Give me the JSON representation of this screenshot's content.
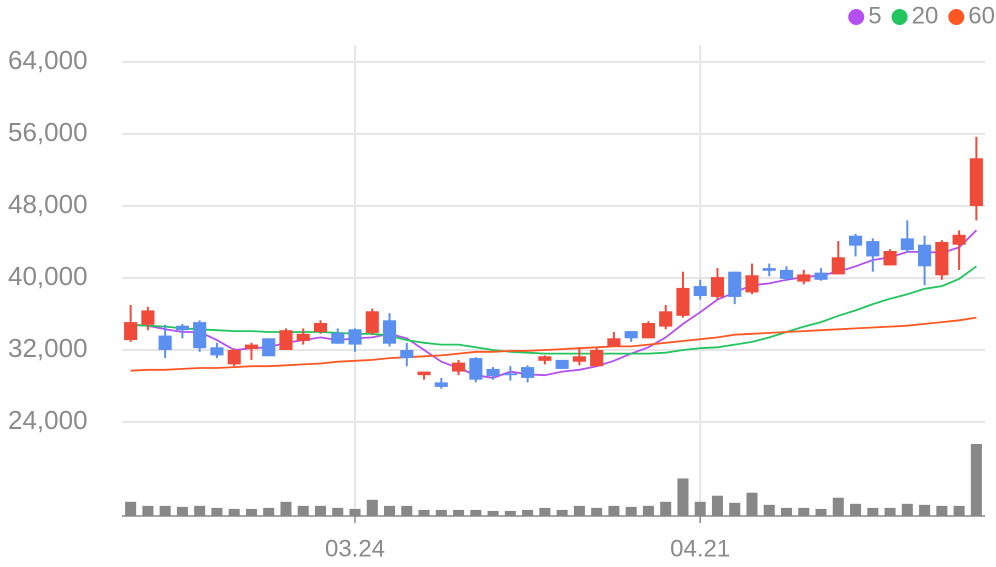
{
  "chart_data": {
    "type": "candlestick",
    "categories": [
      null,
      null,
      null,
      null,
      null,
      null,
      null,
      null,
      null,
      null,
      null,
      null,
      null,
      "03.24",
      null,
      null,
      null,
      null,
      null,
      null,
      null,
      null,
      null,
      null,
      null,
      null,
      null,
      null,
      null,
      null,
      null,
      null,
      null,
      "04.21",
      null,
      null,
      null,
      null,
      null,
      null,
      null,
      null,
      null,
      null,
      null,
      null,
      null,
      null,
      null,
      null
    ],
    "open": [
      33100,
      34800,
      33600,
      34700,
      35100,
      32300,
      30400,
      32100,
      33300,
      32000,
      33000,
      34000,
      33900,
      34300,
      33900,
      35300,
      32000,
      29200,
      28400,
      29600,
      31100,
      29900,
      29400,
      30100,
      30800,
      30900,
      30700,
      30200,
      32400,
      34100,
      33300,
      34600,
      35800,
      39100,
      37900,
      40700,
      38400,
      41100,
      40900,
      39600,
      40600,
      40400,
      44700,
      44100,
      41400,
      44400,
      43700,
      40300,
      43700,
      48000
    ],
    "high": [
      37000,
      36800,
      34800,
      34900,
      35300,
      32800,
      32200,
      32800,
      33300,
      34400,
      34400,
      35300,
      34400,
      34400,
      36600,
      36100,
      32800,
      29600,
      28900,
      30900,
      31200,
      30100,
      30200,
      30300,
      31400,
      30900,
      32300,
      32300,
      34000,
      34100,
      35200,
      37000,
      40700,
      39800,
      41100,
      40700,
      41600,
      41600,
      41300,
      40900,
      41100,
      44100,
      44900,
      44400,
      43200,
      46400,
      44700,
      44200,
      45300,
      55700
    ],
    "low": [
      32900,
      34200,
      31100,
      33300,
      31800,
      31100,
      30200,
      30900,
      31300,
      32000,
      32600,
      33800,
      32700,
      31800,
      33700,
      32400,
      30200,
      28700,
      27700,
      29200,
      28400,
      28700,
      28600,
      28400,
      30400,
      29900,
      30300,
      30200,
      32400,
      32900,
      33300,
      34300,
      35600,
      37600,
      37600,
      37100,
      38200,
      40200,
      39700,
      39300,
      39700,
      40400,
      42400,
      40700,
      41400,
      42800,
      39200,
      39800,
      40900,
      46400
    ],
    "close": [
      35100,
      36400,
      32000,
      34200,
      32200,
      31400,
      32000,
      32600,
      31300,
      34200,
      33800,
      35000,
      32700,
      32600,
      36300,
      32700,
      31100,
      29600,
      27900,
      30600,
      28700,
      29100,
      29200,
      28900,
      31300,
      29900,
      31300,
      32000,
      33300,
      33300,
      35000,
      36300,
      38900,
      38000,
      40100,
      37900,
      40300,
      40800,
      39900,
      40400,
      39800,
      42300,
      43600,
      42400,
      43000,
      43100,
      41300,
      44000,
      44800,
      53300
    ],
    "volume": [
      14,
      10,
      10,
      9,
      10,
      8,
      7,
      7,
      8,
      14,
      10,
      10,
      8,
      7,
      16,
      10,
      10,
      6,
      6,
      6,
      6,
      5,
      5,
      6,
      8,
      6,
      10,
      8,
      10,
      9,
      10,
      14,
      37,
      14,
      20,
      13,
      23,
      11,
      8,
      8,
      7,
      18,
      12,
      8,
      8,
      12,
      11,
      10,
      10,
      71
    ],
    "up_color": "#f04a3a",
    "down_color": "#5b8ff0",
    "volume_color": "#888888",
    "series": [
      {
        "name": "5",
        "color": "#b44ff0",
        "values": [
          34800,
          34700,
          34300,
          34000,
          34000,
          33100,
          32000,
          32200,
          32300,
          32800,
          33100,
          33400,
          33100,
          33300,
          33400,
          33800,
          33300,
          32000,
          30700,
          30000,
          29200,
          28900,
          29600,
          29300,
          29200,
          29600,
          29800,
          30200,
          30800,
          31600,
          32300,
          33400,
          34900,
          36200,
          37600,
          38400,
          39200,
          39400,
          39800,
          40100,
          40300,
          40700,
          41300,
          42000,
          42300,
          42900,
          42900,
          42800,
          43400,
          45300
        ]
      },
      {
        "name": "20",
        "color": "#22c55e",
        "values": [
          34800,
          34700,
          34600,
          34400,
          34300,
          34200,
          34100,
          34100,
          34000,
          34000,
          34000,
          34000,
          33900,
          33800,
          33800,
          33600,
          33100,
          32800,
          32600,
          32600,
          32300,
          32000,
          31800,
          31700,
          31600,
          31600,
          31600,
          31600,
          31600,
          31600,
          31600,
          31700,
          32000,
          32200,
          32300,
          32600,
          32900,
          33400,
          34000,
          34600,
          35100,
          35800,
          36400,
          37100,
          37700,
          38200,
          38800,
          39100,
          39900,
          41300
        ]
      },
      {
        "name": "60",
        "color": "#ff5722",
        "values": [
          29700,
          29800,
          29800,
          29900,
          30000,
          30000,
          30100,
          30200,
          30200,
          30300,
          30400,
          30500,
          30700,
          30800,
          30900,
          31100,
          31200,
          31300,
          31400,
          31600,
          31800,
          31800,
          31900,
          31900,
          32000,
          32100,
          32200,
          32300,
          32400,
          32400,
          32600,
          32800,
          33000,
          33200,
          33400,
          33700,
          33800,
          33900,
          34000,
          34100,
          34200,
          34300,
          34400,
          34500,
          34600,
          34700,
          34900,
          35100,
          35300,
          35600
        ]
      }
    ],
    "ylim": [
      24000,
      64000
    ],
    "yticks": [
      {
        "value": 24000,
        "label": "24,000"
      },
      {
        "value": 32000,
        "label": "32,000"
      },
      {
        "value": 40000,
        "label": "40,000"
      },
      {
        "value": 48000,
        "label": "48,000"
      },
      {
        "value": 56000,
        "label": "56,000"
      },
      {
        "value": 64000,
        "label": "64,000"
      }
    ],
    "grid": true,
    "legend": "top-right"
  }
}
